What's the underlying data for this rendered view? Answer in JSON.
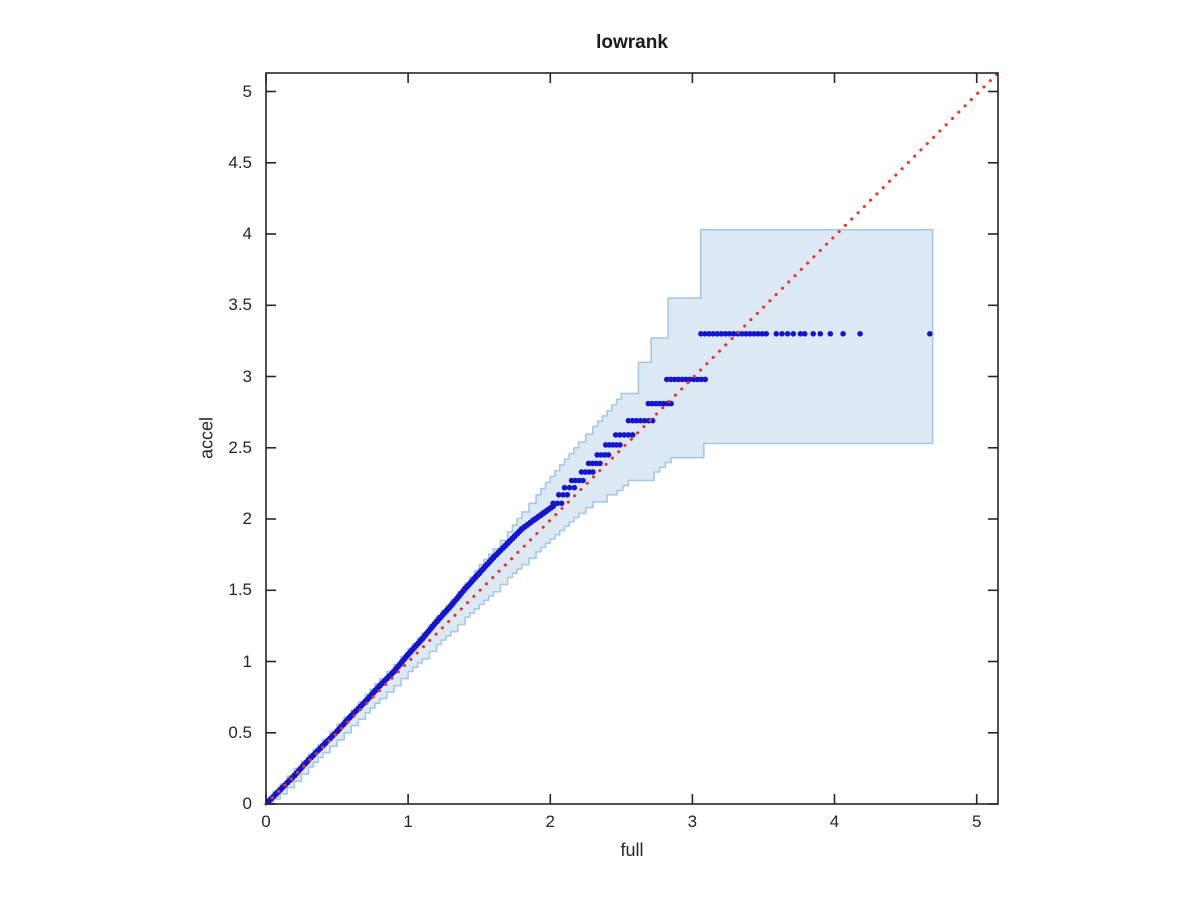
{
  "chart_data": {
    "type": "scatter",
    "subtype": "qqplot-with-confidence-band",
    "title": "lowrank",
    "xlabel": "full",
    "ylabel": "accel",
    "xlim": [
      0,
      5.15
    ],
    "ylim": [
      0,
      5.13
    ],
    "grid": false,
    "legend": null,
    "x_ticks": [
      0,
      1,
      2,
      3,
      4,
      5
    ],
    "x_tick_labels": [
      "0",
      "1",
      "2",
      "3",
      "4",
      "5"
    ],
    "y_ticks": [
      0,
      0.5,
      1,
      1.5,
      2,
      2.5,
      3,
      3.5,
      4,
      4.5,
      5
    ],
    "y_tick_labels": [
      "0",
      "0.5",
      "1",
      "1.5",
      "2",
      "2.5",
      "3",
      "3.5",
      "4",
      "4.5",
      "5"
    ],
    "reference_line": {
      "name": "identity-line",
      "style": "dotted",
      "color": "#ee3524",
      "from": [
        0,
        0
      ],
      "to": [
        5.15,
        5.13
      ]
    },
    "confidence_band": {
      "fill_color": "#dce9f4",
      "edge_color": "#a5c9e1",
      "upper_steps": [
        [
          0,
          0.04
        ],
        [
          0.1,
          0.14
        ],
        [
          0.2,
          0.25
        ],
        [
          0.3,
          0.35
        ],
        [
          0.4,
          0.45
        ],
        [
          0.5,
          0.56
        ],
        [
          0.6,
          0.66
        ],
        [
          0.7,
          0.77
        ],
        [
          0.8,
          0.88
        ],
        [
          0.9,
          0.98
        ],
        [
          1.0,
          1.09
        ],
        [
          1.1,
          1.2
        ],
        [
          1.2,
          1.32
        ],
        [
          1.3,
          1.43
        ],
        [
          1.4,
          1.55
        ],
        [
          1.5,
          1.68
        ],
        [
          1.6,
          1.79
        ],
        [
          1.7,
          1.91
        ],
        [
          1.8,
          2.05
        ],
        [
          1.9,
          2.17
        ],
        [
          2.0,
          2.3
        ],
        [
          2.1,
          2.42
        ],
        [
          2.2,
          2.54
        ],
        [
          2.3,
          2.65
        ],
        [
          2.4,
          2.76
        ],
        [
          2.5,
          2.88
        ],
        [
          2.62,
          3.1
        ],
        [
          2.71,
          3.27
        ],
        [
          2.83,
          3.55
        ],
        [
          3.06,
          4.03
        ],
        [
          4.69,
          4.03
        ]
      ],
      "lower_steps": [
        [
          0,
          0.0
        ],
        [
          0.1,
          0.07
        ],
        [
          0.2,
          0.16
        ],
        [
          0.3,
          0.26
        ],
        [
          0.4,
          0.36
        ],
        [
          0.5,
          0.45
        ],
        [
          0.6,
          0.55
        ],
        [
          0.7,
          0.64
        ],
        [
          0.8,
          0.74
        ],
        [
          0.9,
          0.83
        ],
        [
          1.0,
          0.93
        ],
        [
          1.1,
          1.02
        ],
        [
          1.2,
          1.12
        ],
        [
          1.3,
          1.21
        ],
        [
          1.4,
          1.31
        ],
        [
          1.5,
          1.4
        ],
        [
          1.6,
          1.49
        ],
        [
          1.7,
          1.59
        ],
        [
          1.8,
          1.68
        ],
        [
          1.9,
          1.77
        ],
        [
          2.0,
          1.86
        ],
        [
          2.1,
          1.95
        ],
        [
          2.2,
          2.04
        ],
        [
          2.3,
          2.12
        ],
        [
          2.4,
          2.17
        ],
        [
          2.47,
          2.2
        ],
        [
          2.55,
          2.27
        ],
        [
          2.73,
          2.33
        ],
        [
          2.85,
          2.43
        ],
        [
          3.08,
          2.53
        ],
        [
          4.69,
          2.53
        ]
      ]
    },
    "points": {
      "color": "#1515d0",
      "dense_curve": [
        [
          0.02,
          0.02
        ],
        [
          0.1,
          0.1
        ],
        [
          0.2,
          0.2
        ],
        [
          0.3,
          0.31
        ],
        [
          0.4,
          0.41
        ],
        [
          0.5,
          0.51
        ],
        [
          0.6,
          0.62
        ],
        [
          0.7,
          0.72
        ],
        [
          0.8,
          0.83
        ],
        [
          0.9,
          0.93
        ],
        [
          1.0,
          1.05
        ],
        [
          1.1,
          1.16
        ],
        [
          1.2,
          1.28
        ],
        [
          1.3,
          1.39
        ],
        [
          1.4,
          1.51
        ],
        [
          1.5,
          1.62
        ],
        [
          1.6,
          1.73
        ],
        [
          1.7,
          1.83
        ],
        [
          1.8,
          1.93
        ],
        [
          1.88,
          1.99
        ],
        [
          1.95,
          2.04
        ],
        [
          2.02,
          2.09
        ]
      ],
      "quantized_runs": [
        {
          "y": 2.11,
          "x_start": 2.02,
          "x_end": 2.08
        },
        {
          "y": 2.17,
          "x_start": 2.06,
          "x_end": 2.12
        },
        {
          "y": 2.22,
          "x_start": 2.1,
          "x_end": 2.17
        },
        {
          "y": 2.27,
          "x_start": 2.15,
          "x_end": 2.23
        },
        {
          "y": 2.33,
          "x_start": 2.22,
          "x_end": 2.3
        },
        {
          "y": 2.39,
          "x_start": 2.27,
          "x_end": 2.35
        },
        {
          "y": 2.45,
          "x_start": 2.33,
          "x_end": 2.41
        },
        {
          "y": 2.52,
          "x_start": 2.39,
          "x_end": 2.49
        },
        {
          "y": 2.59,
          "x_start": 2.46,
          "x_end": 2.58
        },
        {
          "y": 2.69,
          "x_start": 2.55,
          "x_end": 2.72
        },
        {
          "y": 2.81,
          "x_start": 2.69,
          "x_end": 2.85
        },
        {
          "y": 2.98,
          "x_start": 2.82,
          "x_end": 3.09
        },
        {
          "y": 3.3,
          "x_start": 3.06,
          "x_end": 3.52
        }
      ],
      "isolated_points": {
        "y": 3.3,
        "x_values": [
          3.59,
          3.63,
          3.67,
          3.71,
          3.76,
          3.79,
          3.85,
          3.9,
          3.97,
          4.06,
          4.18,
          4.67
        ]
      }
    },
    "axis_color": "#262626",
    "background_color": "#ffffff"
  }
}
